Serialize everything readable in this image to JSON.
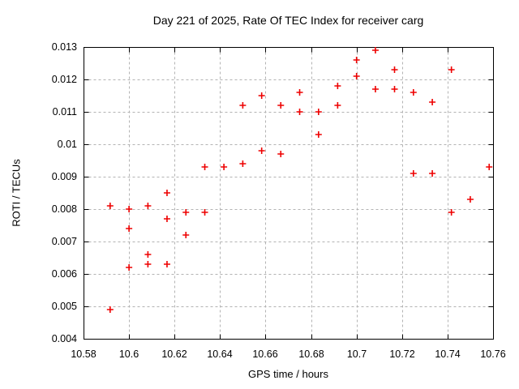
{
  "chart_data": {
    "type": "scatter",
    "title": "Day 221 of 2025, Rate Of TEC Index for receiver carg",
    "xlabel": "GPS time / hours",
    "ylabel": "ROTI / TECUs",
    "xlim": [
      10.58,
      10.76
    ],
    "ylim": [
      0.004,
      0.013
    ],
    "grid": true,
    "legend": "none",
    "marker": "plus",
    "marker_color": "#ee0000",
    "grid_color": "#b3b3b3",
    "axis_color": "#000000",
    "background_color": "#ffffff",
    "x_ticks": [
      {
        "value": 10.58,
        "label": "10.58"
      },
      {
        "value": 10.6,
        "label": "10.6"
      },
      {
        "value": 10.62,
        "label": "10.62"
      },
      {
        "value": 10.64,
        "label": "10.64"
      },
      {
        "value": 10.66,
        "label": "10.66"
      },
      {
        "value": 10.68,
        "label": "10.68"
      },
      {
        "value": 10.7,
        "label": "10.7"
      },
      {
        "value": 10.72,
        "label": "10.72"
      },
      {
        "value": 10.74,
        "label": "10.74"
      },
      {
        "value": 10.76,
        "label": "10.76"
      }
    ],
    "y_ticks": [
      {
        "value": 0.004,
        "label": "0.004"
      },
      {
        "value": 0.005,
        "label": "0.005"
      },
      {
        "value": 0.006,
        "label": "0.006"
      },
      {
        "value": 0.007,
        "label": "0.007"
      },
      {
        "value": 0.008,
        "label": "0.008"
      },
      {
        "value": 0.009,
        "label": "0.009"
      },
      {
        "value": 0.01,
        "label": "0.01"
      },
      {
        "value": 0.011,
        "label": "0.011"
      },
      {
        "value": 0.012,
        "label": "0.012"
      },
      {
        "value": 0.013,
        "label": "0.013"
      }
    ],
    "series": [
      {
        "name": "ROTI",
        "points": [
          [
            10.5917,
            0.0081
          ],
          [
            10.5917,
            0.0049
          ],
          [
            10.6,
            0.008
          ],
          [
            10.6,
            0.0074
          ],
          [
            10.6,
            0.0062
          ],
          [
            10.6083,
            0.0081
          ],
          [
            10.6083,
            0.0066
          ],
          [
            10.6083,
            0.0063
          ],
          [
            10.6167,
            0.0085
          ],
          [
            10.6167,
            0.0077
          ],
          [
            10.6167,
            0.0063
          ],
          [
            10.625,
            0.0079
          ],
          [
            10.625,
            0.0072
          ],
          [
            10.6333,
            0.0093
          ],
          [
            10.6333,
            0.0079
          ],
          [
            10.6417,
            0.0093
          ],
          [
            10.65,
            0.0112
          ],
          [
            10.65,
            0.0094
          ],
          [
            10.6583,
            0.0115
          ],
          [
            10.6583,
            0.0098
          ],
          [
            10.6667,
            0.0112
          ],
          [
            10.6667,
            0.0097
          ],
          [
            10.675,
            0.0116
          ],
          [
            10.675,
            0.011
          ],
          [
            10.6833,
            0.011
          ],
          [
            10.6833,
            0.0103
          ],
          [
            10.6917,
            0.0118
          ],
          [
            10.6917,
            0.0112
          ],
          [
            10.7,
            0.0126
          ],
          [
            10.7,
            0.0121
          ],
          [
            10.7083,
            0.0129
          ],
          [
            10.7083,
            0.0117
          ],
          [
            10.7167,
            0.0123
          ],
          [
            10.7167,
            0.0117
          ],
          [
            10.725,
            0.0116
          ],
          [
            10.725,
            0.0091
          ],
          [
            10.7333,
            0.0113
          ],
          [
            10.7333,
            0.0091
          ],
          [
            10.7417,
            0.0123
          ],
          [
            10.7417,
            0.0079
          ],
          [
            10.75,
            0.0083
          ],
          [
            10.7583,
            0.0093
          ]
        ]
      }
    ]
  }
}
